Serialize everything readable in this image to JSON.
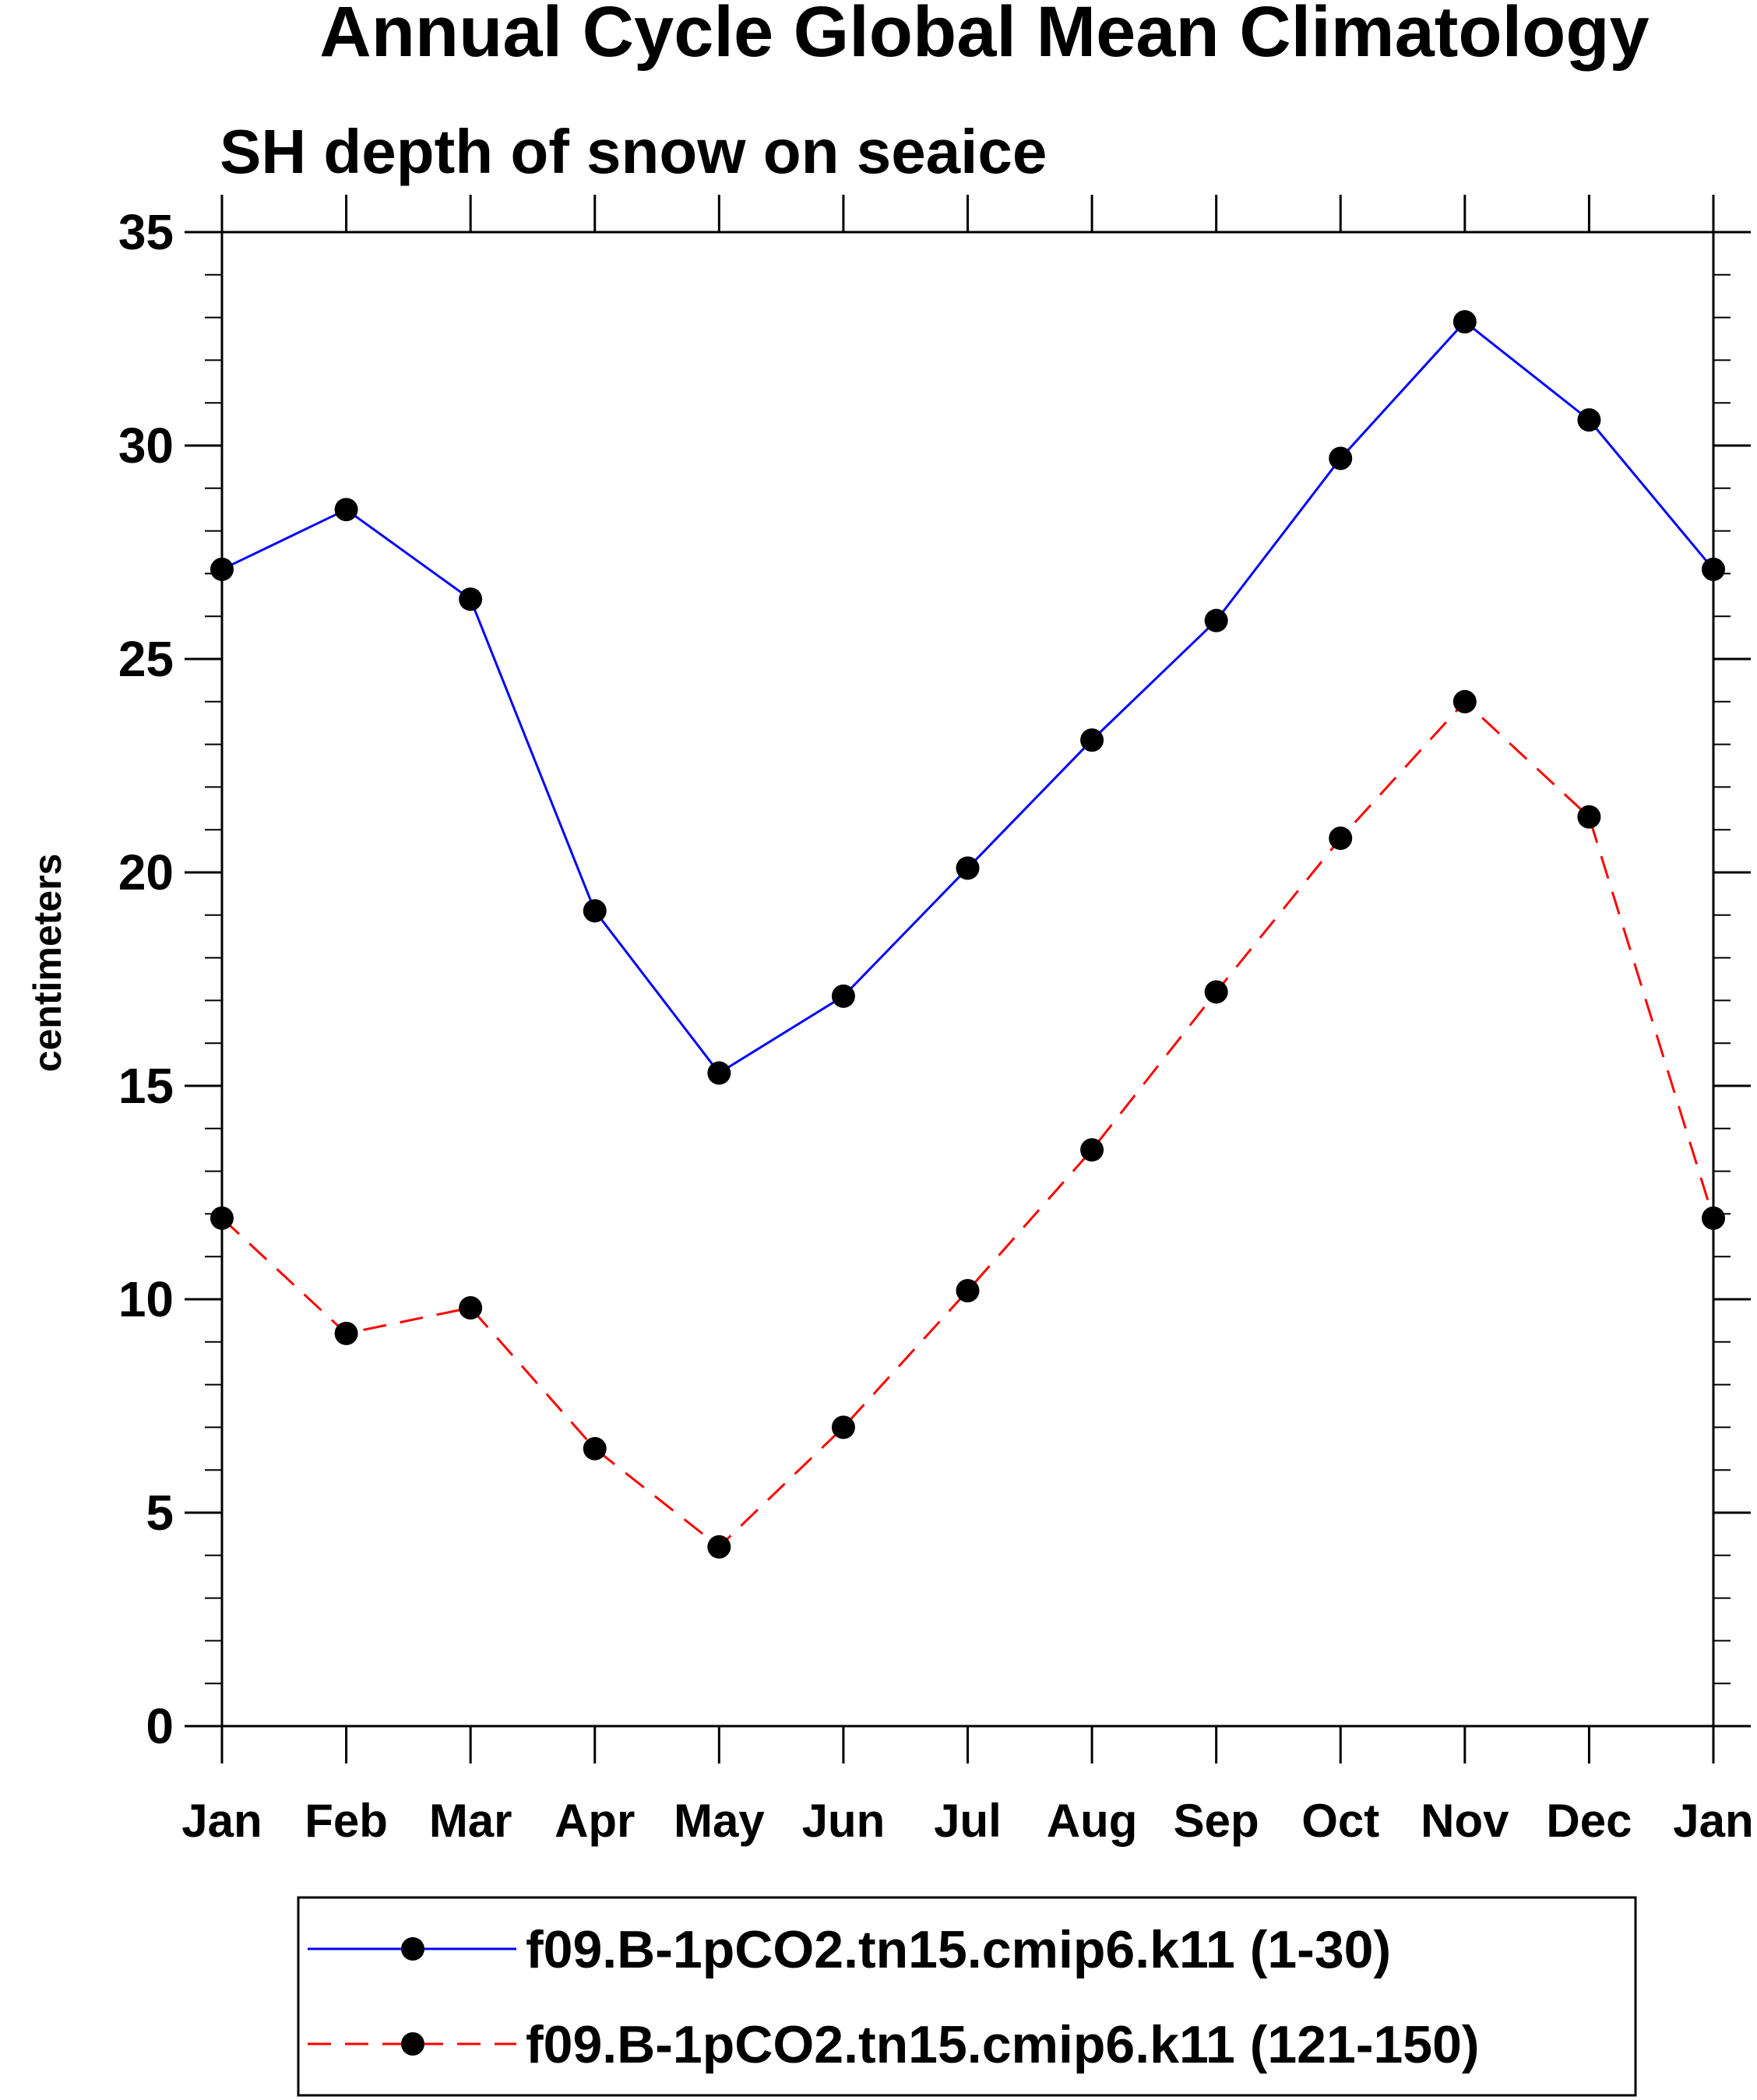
{
  "chart_data": {
    "type": "line",
    "title": "Annual Cycle Global Mean Climatology",
    "subtitle": "SH depth of snow on seaice",
    "xlabel": "",
    "ylabel": "centimeters",
    "categories": [
      "Jan",
      "Feb",
      "Mar",
      "Apr",
      "May",
      "Jun",
      "Jul",
      "Aug",
      "Sep",
      "Oct",
      "Nov",
      "Dec",
      "Jan"
    ],
    "ylim": [
      0,
      35
    ],
    "yticks": [
      0,
      5,
      10,
      15,
      20,
      25,
      30,
      35
    ],
    "ytick_labels": [
      "0",
      "5",
      "10",
      "15",
      "20",
      "25",
      "30",
      "35"
    ],
    "y_minor_step": 1,
    "grid": false,
    "legend_position": "bottom",
    "series": [
      {
        "name": "f09.B-1pCO2.tn15.cmip6.k11 (1-30)",
        "color": "#0000ff",
        "line_style": "solid",
        "marker": "filled-circle",
        "values": [
          27.1,
          28.5,
          26.4,
          19.1,
          15.3,
          17.1,
          20.1,
          23.1,
          25.9,
          29.7,
          32.9,
          30.6,
          27.1
        ]
      },
      {
        "name": "f09.B-1pCO2.tn15.cmip6.k11 (121-150)",
        "color": "#ff0000",
        "line_style": "dashed",
        "marker": "filled-circle",
        "values": [
          11.9,
          9.2,
          9.8,
          6.5,
          4.2,
          7.0,
          10.2,
          13.5,
          17.2,
          20.8,
          24.0,
          21.3,
          11.9
        ]
      }
    ]
  }
}
